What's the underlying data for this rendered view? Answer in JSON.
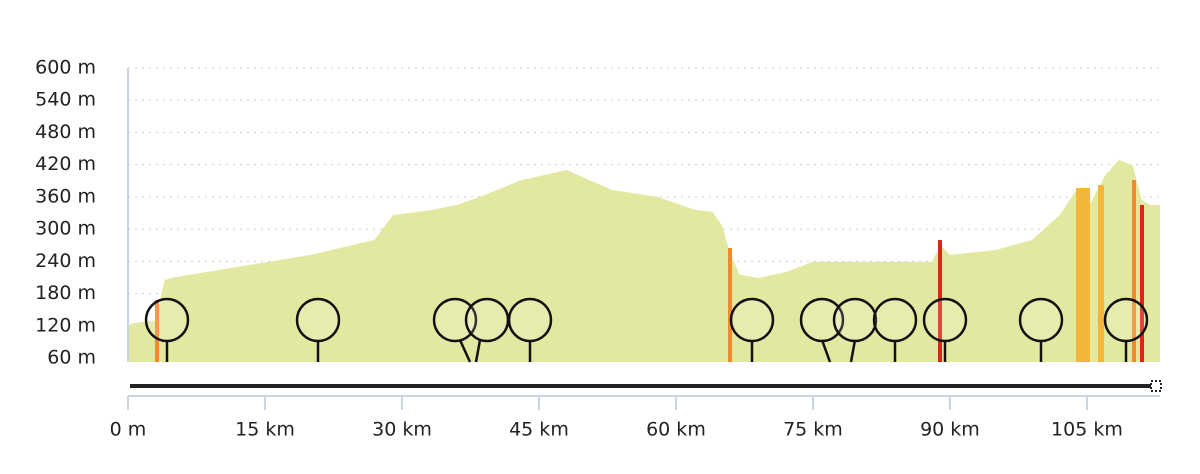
{
  "chart_data": {
    "type": "area",
    "color": "#e3e8a0",
    "grid": true,
    "x": [
      0,
      0.5,
      3,
      4,
      5,
      10,
      20,
      27,
      29,
      33,
      36,
      39,
      43,
      48,
      53,
      58,
      62,
      64,
      65,
      66,
      67,
      69,
      72,
      75,
      80,
      88,
      89,
      90,
      95,
      99,
      102,
      104,
      105,
      107,
      108.5,
      110,
      111,
      112,
      113
    ],
    "values": [
      120,
      125,
      130,
      205,
      210,
      224,
      252,
      280,
      326,
      335,
      345,
      363,
      391,
      410,
      373,
      360,
      336,
      332,
      308,
      252,
      215,
      209,
      220,
      239,
      239,
      239,
      270,
      252,
      261,
      280,
      326,
      377,
      336,
      400,
      429,
      419,
      354,
      345,
      345
    ],
    "xlim": [
      0,
      113
    ],
    "xticks": [
      {
        "value": 0,
        "label": "0 m"
      },
      {
        "value": 15,
        "label": "15 km"
      },
      {
        "value": 30,
        "label": "30 km"
      },
      {
        "value": 45,
        "label": "45 km"
      },
      {
        "value": 60,
        "label": "60 km"
      },
      {
        "value": 75,
        "label": "75 km"
      },
      {
        "value": 90,
        "label": "90 km"
      },
      {
        "value": 105,
        "label": "105 km"
      }
    ],
    "ylim": [
      60,
      600
    ],
    "yticks": [
      {
        "value": 60,
        "label": "60 m"
      },
      {
        "value": 120,
        "label": "120 m"
      },
      {
        "value": 180,
        "label": "180 m"
      },
      {
        "value": 240,
        "label": "240 m"
      },
      {
        "value": 300,
        "label": "300 m"
      },
      {
        "value": 360,
        "label": "360 m"
      },
      {
        "value": 420,
        "label": "420 m"
      },
      {
        "value": 480,
        "label": "480 m"
      },
      {
        "value": 540,
        "label": "540 m"
      },
      {
        "value": 600,
        "label": "600 m"
      }
    ]
  }
}
